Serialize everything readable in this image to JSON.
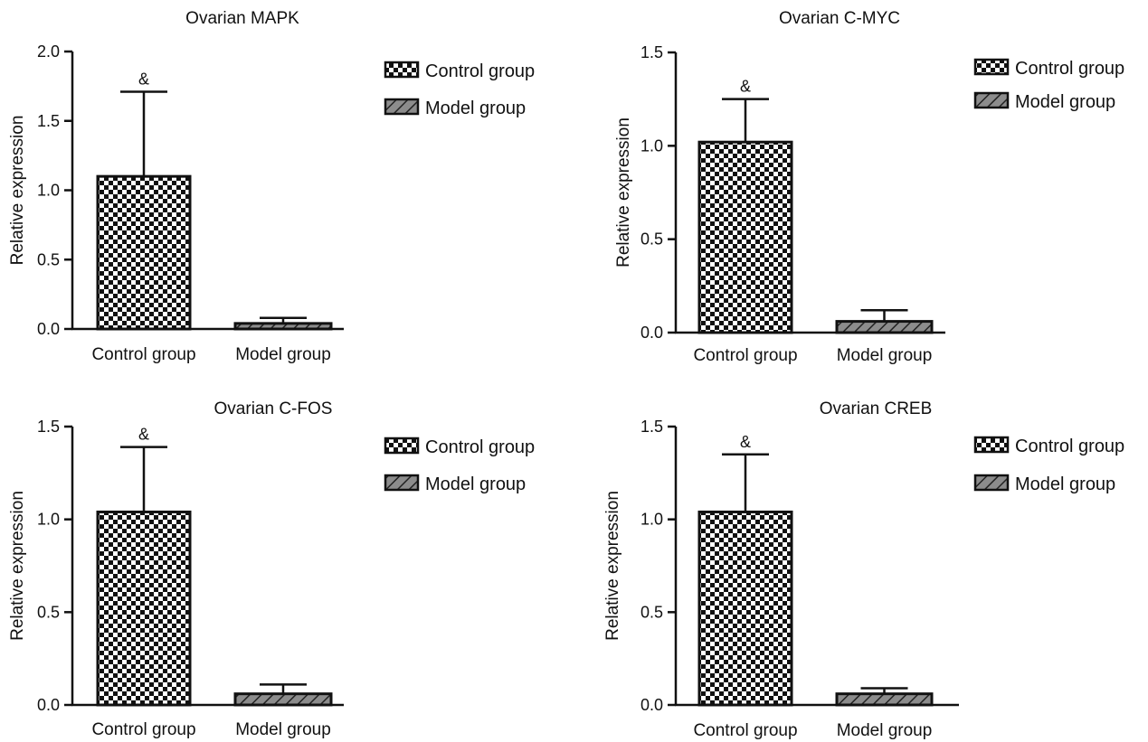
{
  "colors": {
    "axis": "#111111",
    "bar_outline": "#111111",
    "checker_dark": "#111111",
    "checker_light": "#ffffff",
    "hatch_fill": "#8c8c8c",
    "hatch_line": "#222222"
  },
  "chart_data": [
    {
      "type": "bar",
      "title": "Ovarian MAPK",
      "ylabel": "Relative expression",
      "xlabel": "",
      "categories": [
        "Control group",
        "Model group"
      ],
      "values": [
        1.1,
        0.04
      ],
      "error_upper": [
        1.71,
        0.08
      ],
      "significance": [
        "&",
        ""
      ],
      "ylim": [
        0,
        2.0
      ],
      "yticks": [
        "0.0",
        "0.5",
        "1.0",
        "1.5",
        "2.0"
      ],
      "ytick_values": [
        0,
        0.5,
        1.0,
        1.5,
        2.0
      ],
      "legend": [
        "Control group",
        "Model group"
      ],
      "legend_position": "right",
      "fills": [
        "checker",
        "hatch"
      ],
      "grid": false
    },
    {
      "type": "bar",
      "title": "Ovarian C-MYC",
      "ylabel": "Relative expression",
      "xlabel": "",
      "categories": [
        "Control group",
        "Model group"
      ],
      "values": [
        1.02,
        0.06
      ],
      "error_upper": [
        1.25,
        0.12
      ],
      "significance": [
        "&",
        ""
      ],
      "ylim": [
        0,
        1.5
      ],
      "yticks": [
        "0.0",
        "0.5",
        "1.0",
        "1.5"
      ],
      "ytick_values": [
        0,
        0.5,
        1.0,
        1.5
      ],
      "legend": [
        "Control group",
        "Model group"
      ],
      "legend_position": "right",
      "fills": [
        "checker",
        "hatch"
      ],
      "grid": false
    },
    {
      "type": "bar",
      "title": "Ovarian C-FOS",
      "ylabel": "Relative expression",
      "xlabel": "",
      "categories": [
        "Control group",
        "Model group"
      ],
      "values": [
        1.04,
        0.06
      ],
      "error_upper": [
        1.39,
        0.11
      ],
      "significance": [
        "&",
        ""
      ],
      "ylim": [
        0,
        1.5
      ],
      "yticks": [
        "0.0",
        "0.5",
        "1.0",
        "1.5"
      ],
      "ytick_values": [
        0,
        0.5,
        1.0,
        1.5
      ],
      "legend": [
        "Control group",
        "Model group"
      ],
      "legend_position": "right",
      "fills": [
        "checker",
        "hatch"
      ],
      "grid": false
    },
    {
      "type": "bar",
      "title": "Ovarian CREB",
      "ylabel": "Relative expression",
      "xlabel": "",
      "categories": [
        "Control group",
        "Model group"
      ],
      "values": [
        1.04,
        0.06
      ],
      "error_upper": [
        1.35,
        0.09
      ],
      "significance": [
        "&",
        ""
      ],
      "ylim": [
        0,
        1.5
      ],
      "yticks": [
        "0.0",
        "0.5",
        "1.0",
        "1.5"
      ],
      "ytick_values": [
        0,
        0.5,
        1.0,
        1.5
      ],
      "legend": [
        "Control group",
        "Model group"
      ],
      "legend_position": "right",
      "fills": [
        "checker",
        "hatch"
      ],
      "grid": false
    }
  ]
}
